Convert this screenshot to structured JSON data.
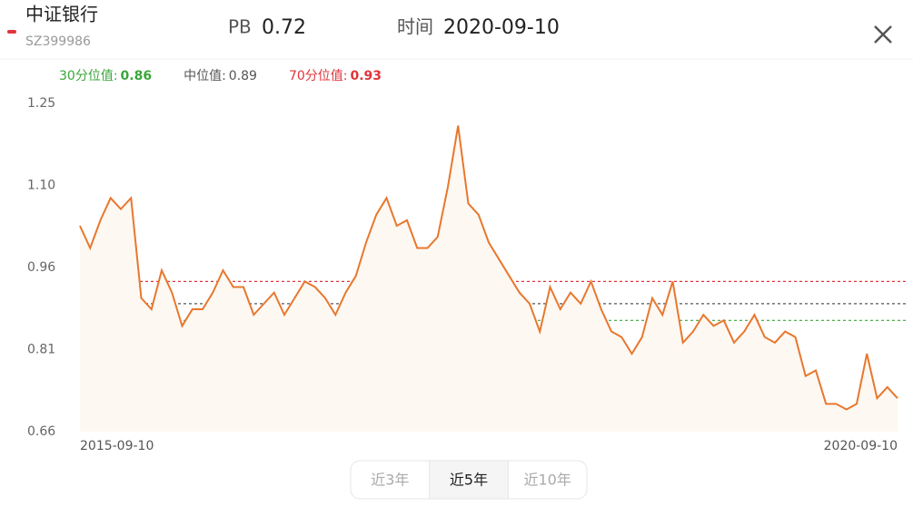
{
  "header": {
    "title": "中证银行",
    "code": "SZ399986",
    "pb_label": "PB",
    "pb": 0.72,
    "time_label": "时间",
    "time": "2020-09-10"
  },
  "chart_data": {
    "type": "line",
    "color": "#e8772e",
    "area_color": "#fdf8f1",
    "categories": [
      "2015-09-10",
      null,
      null,
      null,
      null,
      null,
      null,
      null,
      null,
      null,
      null,
      null,
      null,
      null,
      null,
      null,
      null,
      null,
      null,
      null,
      null,
      null,
      null,
      null,
      null,
      null,
      null,
      null,
      null,
      null,
      null,
      null,
      null,
      null,
      null,
      null,
      null,
      null,
      null,
      null,
      null,
      null,
      null,
      null,
      null,
      null,
      null,
      null,
      null,
      null,
      null,
      null,
      null,
      null,
      null,
      null,
      null,
      null,
      null,
      null,
      null,
      null,
      null,
      null,
      null,
      null,
      null,
      null,
      null,
      null,
      null,
      null,
      null,
      null,
      null,
      null,
      null,
      null,
      null,
      null,
      "2020-09-10"
    ],
    "values": [
      1.03,
      0.99,
      1.04,
      1.08,
      1.06,
      1.08,
      0.9,
      0.88,
      0.95,
      0.91,
      0.85,
      0.88,
      0.88,
      0.91,
      0.95,
      0.92,
      0.92,
      0.87,
      0.89,
      0.91,
      0.87,
      0.9,
      0.93,
      0.92,
      0.9,
      0.87,
      0.91,
      0.94,
      1.0,
      1.05,
      1.08,
      1.03,
      1.04,
      0.99,
      0.99,
      1.01,
      1.1,
      1.21,
      1.07,
      1.05,
      1.0,
      0.97,
      0.94,
      0.91,
      0.89,
      0.84,
      0.92,
      0.88,
      0.91,
      0.89,
      0.93,
      0.88,
      0.84,
      0.83,
      0.8,
      0.83,
      0.9,
      0.87,
      0.93,
      0.82,
      0.84,
      0.87,
      0.85,
      0.86,
      0.82,
      0.84,
      0.87,
      0.83,
      0.82,
      0.84,
      0.83,
      0.76,
      0.77,
      0.71,
      0.71,
      0.7,
      0.71,
      0.8,
      0.72,
      0.74,
      0.72
    ],
    "ylim": [
      0.66,
      1.25
    ],
    "yticks": [
      0.66,
      {
        "value": 0.8075,
        "label": "0.81"
      },
      {
        "value": 0.955,
        "label": "0.96"
      },
      {
        "value": 1.1025,
        "label": "1.10"
      },
      1.25
    ],
    "reference_lines": [
      {
        "label": "30分位值:",
        "value": 0.86,
        "color": "#3aa63a"
      },
      {
        "label": "中位值:",
        "value": 0.89,
        "color": "#555555"
      },
      {
        "label": "70分位值:",
        "value": 0.93,
        "color": "#e0353a"
      }
    ]
  },
  "tabs": {
    "items": [
      "近3年",
      "近5年",
      "近10年"
    ],
    "active": 1
  }
}
